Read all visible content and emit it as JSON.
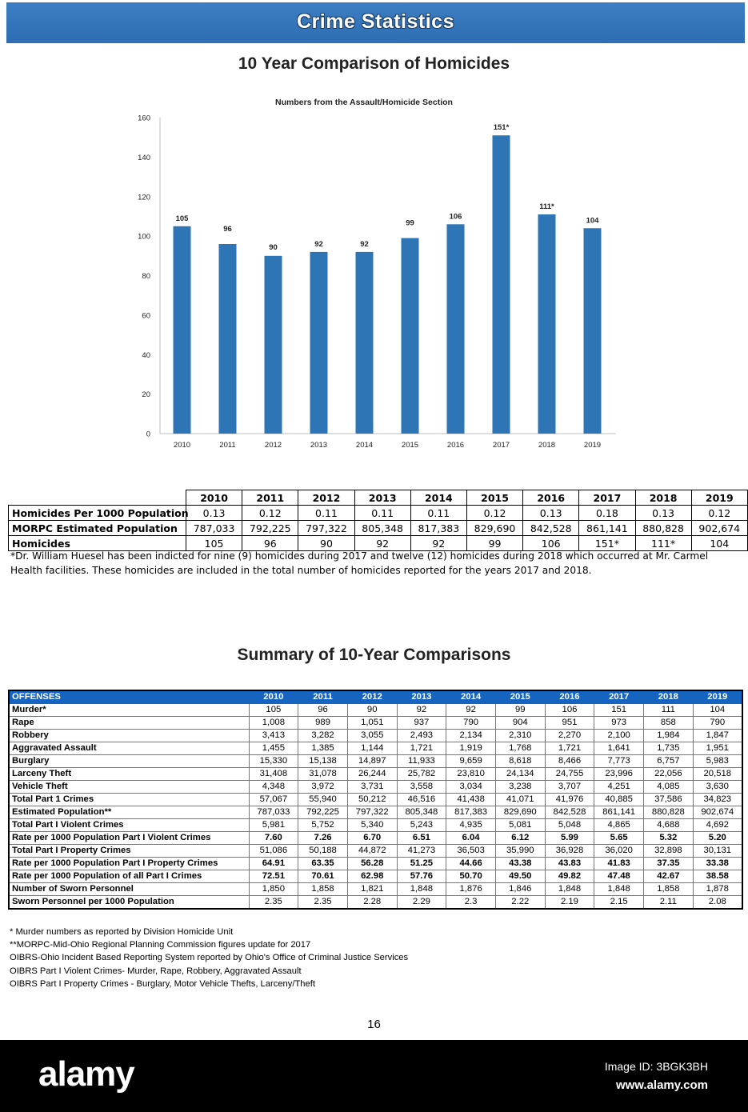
{
  "banner": {
    "title": "Crime Statistics"
  },
  "homicide_section": {
    "title": "10 Year Comparison of Homicides"
  },
  "chart_data": {
    "type": "bar",
    "title": "Numbers from the Assault/Homicide Section",
    "categories": [
      "2010",
      "2011",
      "2012",
      "2013",
      "2014",
      "2015",
      "2016",
      "2017",
      "2018",
      "2019"
    ],
    "values": [
      105,
      96,
      90,
      92,
      92,
      99,
      106,
      151,
      111,
      104
    ],
    "data_labels": [
      "105",
      "96",
      "90",
      "92",
      "92",
      "99",
      "106",
      "151*",
      "111*",
      "104"
    ],
    "ylim": [
      0,
      160
    ],
    "yticks": [
      0,
      20,
      40,
      60,
      80,
      100,
      120,
      140,
      160
    ],
    "grid": false,
    "bar_color": "#2e75b6"
  },
  "homicide_table": {
    "years": [
      "2010",
      "2011",
      "2012",
      "2013",
      "2014",
      "2015",
      "2016",
      "2017",
      "2018",
      "2019"
    ],
    "rows": [
      {
        "label": "Homicides Per 1000 Population",
        "values": [
          "0.13",
          "0.12",
          "0.11",
          "0.11",
          "0.11",
          "0.12",
          "0.13",
          "0.18",
          "0.13",
          "0.12"
        ]
      },
      {
        "label": "MORPC Estimated Population",
        "values": [
          "787,033",
          "792,225",
          "797,322",
          "805,348",
          "817,383",
          "829,690",
          "842,528",
          "861,141",
          "880,828",
          "902,674"
        ]
      },
      {
        "label": "Homicides",
        "values": [
          "105",
          "96",
          "90",
          "92",
          "92",
          "99",
          "106",
          "151*",
          "111*",
          "104"
        ]
      }
    ],
    "footnote": "*Dr. William Huesel has been indicted for nine (9) homicides during 2017 and twelve (12) homicides during 2018 which occurred at Mr. Carmel Health facilities.  These homicides are included in the total number of homicides reported for the years 2017 and 2018."
  },
  "summary": {
    "title": "Summary of 10-Year Comparisons",
    "header": [
      "OFFENSES",
      "2010",
      "2011",
      "2012",
      "2013",
      "2014",
      "2015",
      "2016",
      "2017",
      "2018",
      "2019"
    ],
    "rows": [
      {
        "label": "Murder*",
        "values": [
          "105",
          "96",
          "90",
          "92",
          "92",
          "99",
          "106",
          "151",
          "111",
          "104"
        ]
      },
      {
        "label": "Rape",
        "values": [
          "1,008",
          "989",
          "1,051",
          "937",
          "790",
          "904",
          "951",
          "973",
          "858",
          "790"
        ]
      },
      {
        "label": "Robbery",
        "values": [
          "3,413",
          "3,282",
          "3,055",
          "2,493",
          "2,134",
          "2,310",
          "2,270",
          "2,100",
          "1,984",
          "1,847"
        ]
      },
      {
        "label": "Aggravated Assault",
        "values": [
          "1,455",
          "1,385",
          "1,144",
          "1,721",
          "1,919",
          "1,768",
          "1,721",
          "1,641",
          "1,735",
          "1,951"
        ]
      },
      {
        "label": "Burglary",
        "values": [
          "15,330",
          "15,138",
          "14,897",
          "11,933",
          "9,659",
          "8,618",
          "8,466",
          "7,773",
          "6,757",
          "5,983"
        ]
      },
      {
        "label": "Larceny Theft",
        "values": [
          "31,408",
          "31,078",
          "26,244",
          "25,782",
          "23,810",
          "24,134",
          "24,755",
          "23,996",
          "22,056",
          "20,518"
        ]
      },
      {
        "label": "Vehicle Theft",
        "values": [
          "4,348",
          "3,972",
          "3,731",
          "3,558",
          "3,034",
          "3,238",
          "3,707",
          "4,251",
          "4,085",
          "3,630"
        ]
      },
      {
        "label": "Total Part 1 Crimes",
        "values": [
          "57,067",
          "55,940",
          "50,212",
          "46,516",
          "41,438",
          "41,071",
          "41,976",
          "40,885",
          "37,586",
          "34,823"
        ]
      },
      {
        "label": "Estimated Population**",
        "values": [
          "787,033",
          "792,225",
          "797,322",
          "805,348",
          "817,383",
          "829,690",
          "842,528",
          "861,141",
          "880,828",
          "902,674"
        ]
      },
      {
        "label": "Total Part I Violent Crimes",
        "values": [
          "5,981",
          "5,752",
          "5,340",
          "5,243",
          "4,935",
          "5,081",
          "5,048",
          "4,865",
          "4,688",
          "4,692"
        ]
      },
      {
        "label": "Rate per 1000 Population Part I Violent Crimes",
        "values": [
          "7.60",
          "7.26",
          "6.70",
          "6.51",
          "6.04",
          "6.12",
          "5.99",
          "5.65",
          "5.32",
          "5.20"
        ],
        "bold": true
      },
      {
        "label": "Total Part I Property Crimes",
        "values": [
          "51,086",
          "50,188",
          "44,872",
          "41,273",
          "36,503",
          "35,990",
          "36,928",
          "36,020",
          "32,898",
          "30,131"
        ]
      },
      {
        "label": "Rate per 1000 Population Part I Property Crimes",
        "values": [
          "64.91",
          "63.35",
          "56.28",
          "51.25",
          "44.66",
          "43.38",
          "43.83",
          "41.83",
          "37.35",
          "33.38"
        ],
        "bold": true
      },
      {
        "label": "Rate per 1000 Population of all Part I Crimes",
        "values": [
          "72.51",
          "70.61",
          "62.98",
          "57.76",
          "50.70",
          "49.50",
          "49.82",
          "47.48",
          "42.67",
          "38.58"
        ],
        "bold": true
      },
      {
        "label": "Number of Sworn Personnel",
        "values": [
          "1,850",
          "1,858",
          "1,821",
          "1,848",
          "1,876",
          "1,846",
          "1,848",
          "1,848",
          "1,858",
          "1,878"
        ]
      },
      {
        "label": "Sworn Personnel per 1000 Population",
        "values": [
          "2.35",
          "2.35",
          "2.28",
          "2.29",
          "2.3",
          "2.22",
          "2.19",
          "2.15",
          "2.11",
          "2.08"
        ]
      }
    ],
    "notes": [
      "* Murder numbers as reported by Division Homicide Unit",
      "**MORPC-Mid-Ohio Regional Planning Commission figures update for 2017",
      "OIBRS-Ohio Incident Based Reporting System reported by Ohio's Office of Criminal Justice Services",
      "OIBRS Part I Violent Crimes- Murder, Rape, Robbery, Aggravated Assault",
      "OIBRS Part I Property Crimes - Burglary, Motor Vehicle Thefts, Larceny/Theft"
    ]
  },
  "page_number": "16",
  "footer": {
    "logo": "alamy",
    "image_id": "Image ID: 3BGK3BH",
    "url": "www.alamy.com"
  },
  "colors": {
    "banner": "#2e6db3",
    "bar": "#2e75b6",
    "table_header": "#1565c0",
    "footer_bg": "#000000"
  }
}
